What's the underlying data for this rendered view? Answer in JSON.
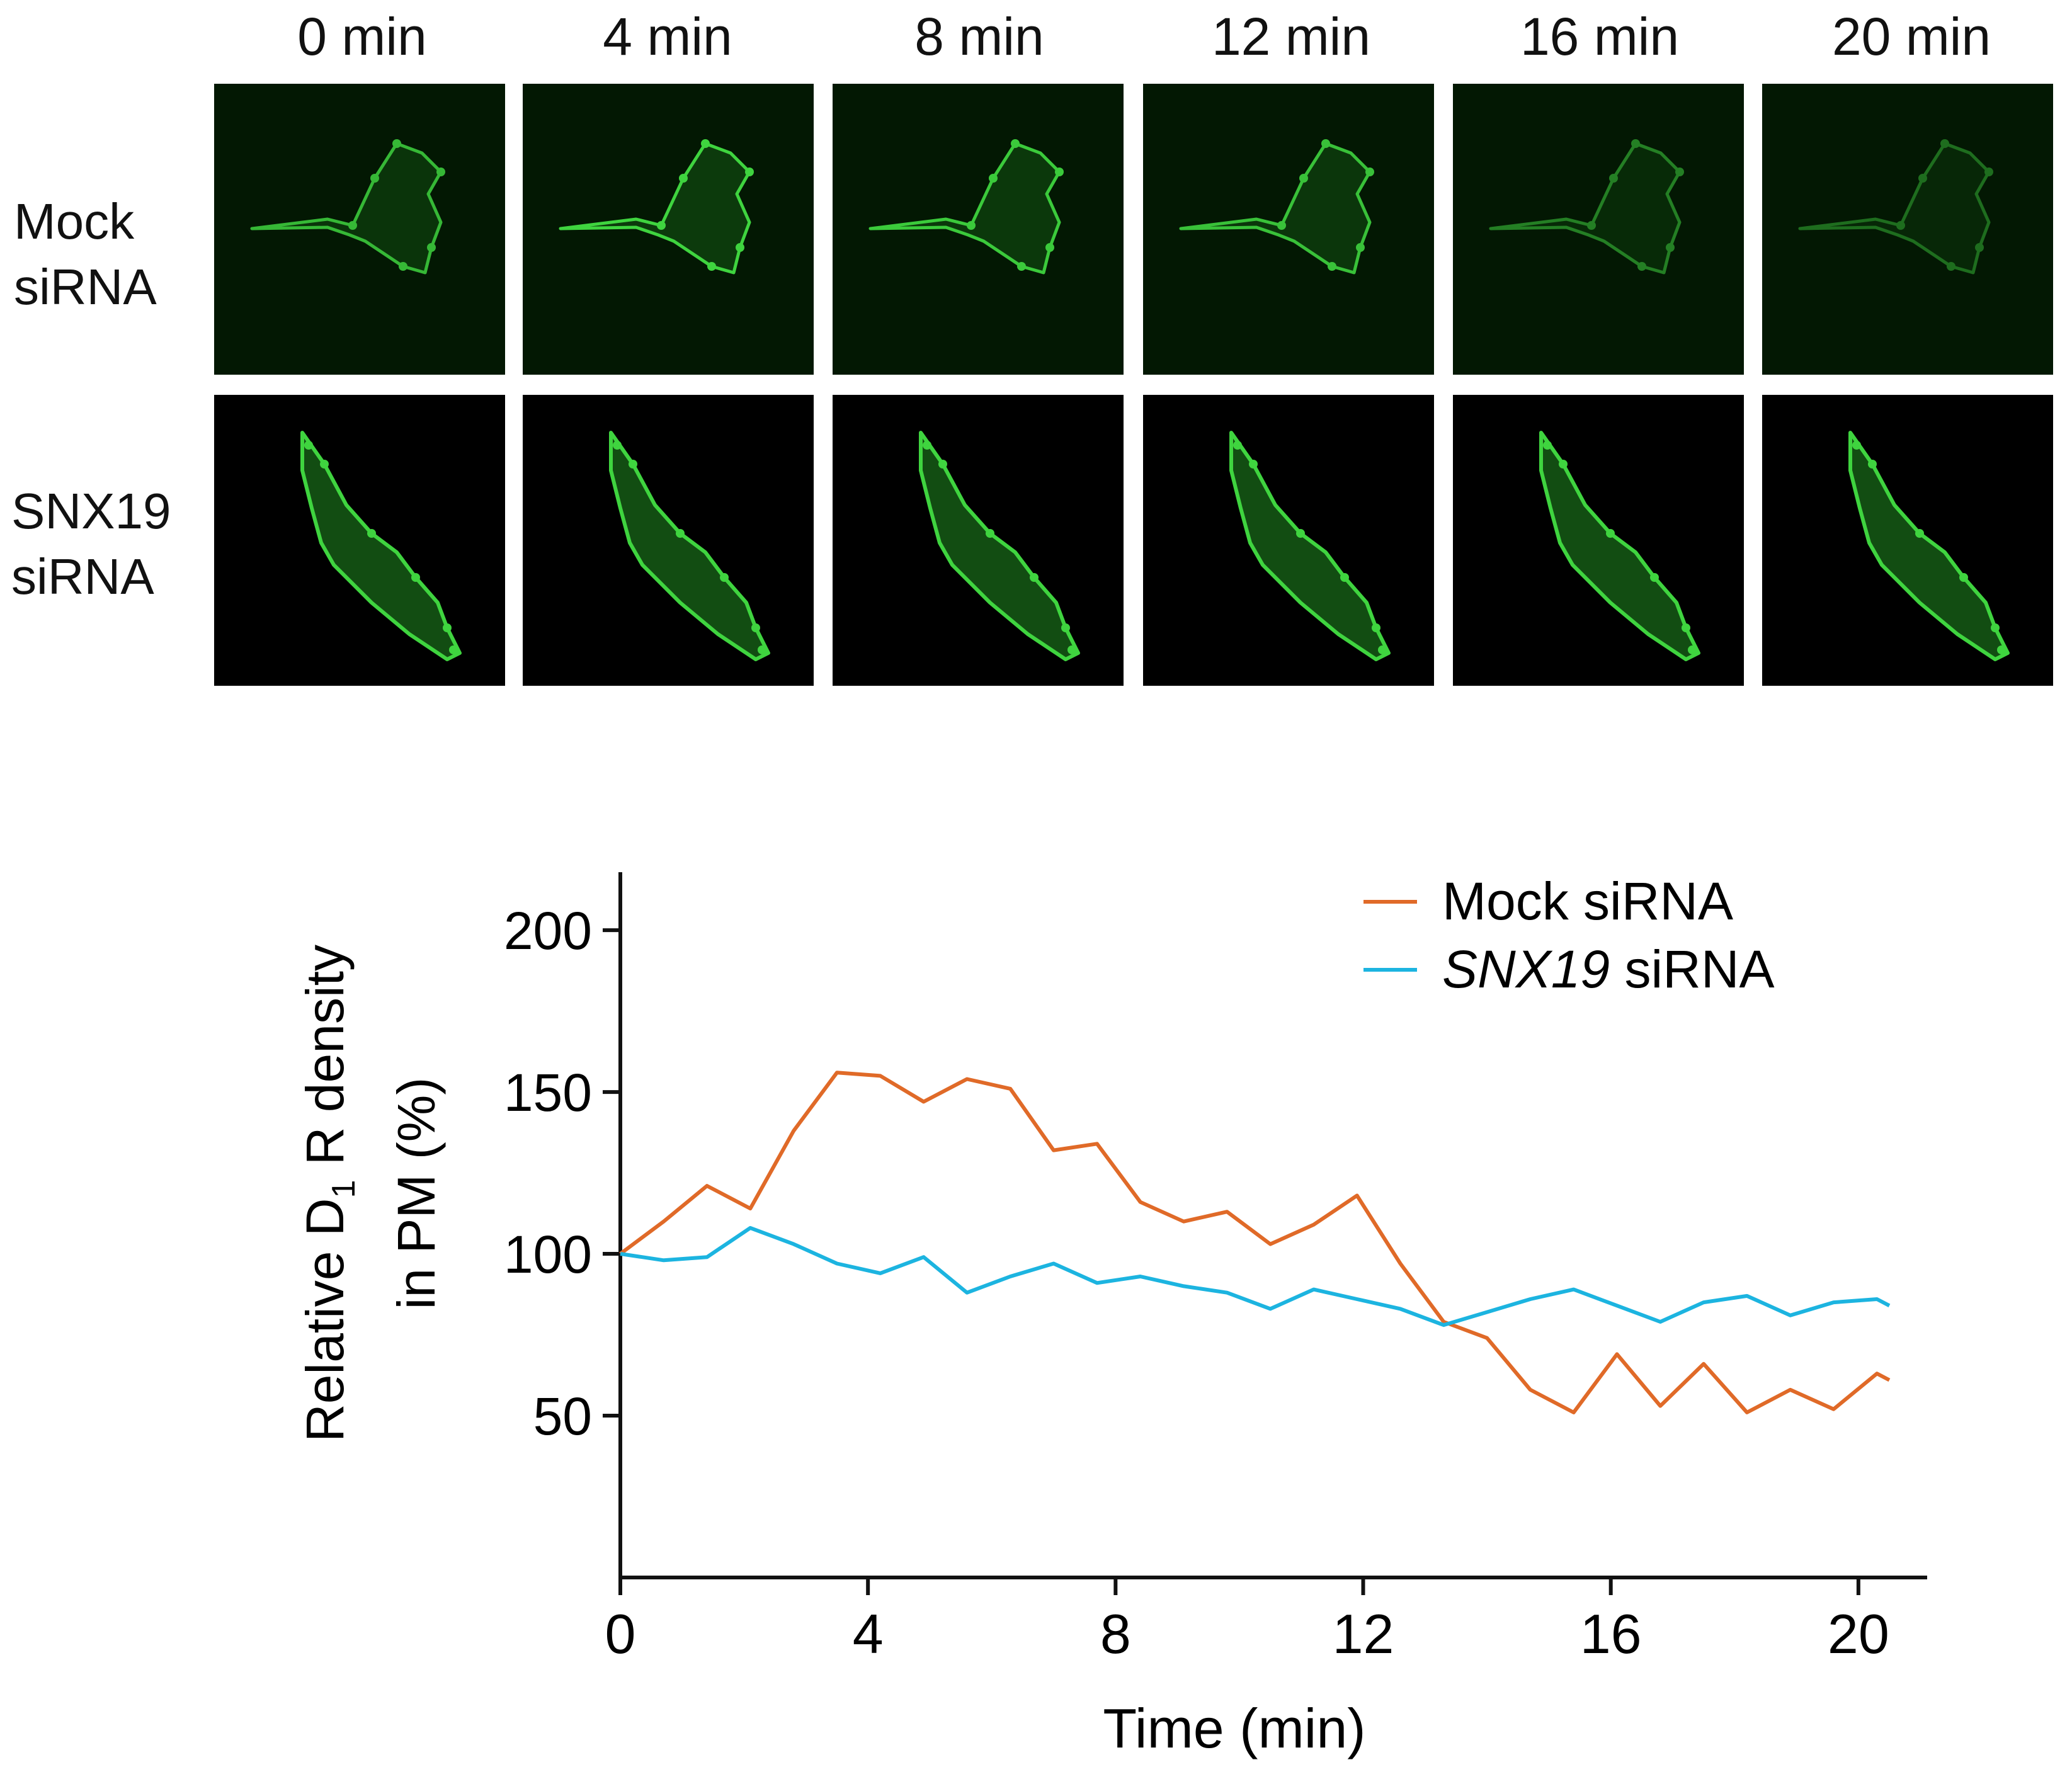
{
  "microscopy": {
    "time_labels": [
      "0 min",
      "4 min",
      "8 min",
      "12 min",
      "16 min",
      "20 min"
    ],
    "rows": [
      {
        "label_line1": "Mock",
        "label_line2": "siRNA",
        "intensity": [
          0.85,
          1.0,
          0.95,
          0.9,
          0.55,
          0.45
        ]
      },
      {
        "label_line1": "SNX19",
        "label_line2": "siRNA",
        "intensity": [
          1.0,
          1.0,
          1.0,
          1.0,
          1.0,
          1.0
        ]
      }
    ],
    "signal_color": "#3fd43f"
  },
  "chart_data": {
    "type": "line",
    "xlabel": "Time (min)",
    "ylabel_line1_pre": "Relative D",
    "ylabel_line1_sub": "1",
    "ylabel_line1_post": " R density",
    "ylabel_line2": "in PM (%)",
    "xlim": [
      0,
      20.5
    ],
    "ylim": [
      0,
      215
    ],
    "xticks": [
      0,
      4,
      8,
      12,
      16,
      20
    ],
    "yticks": [
      50,
      100,
      150,
      200
    ],
    "legend_position": "top-right",
    "series": [
      {
        "name_prefix": "",
        "name_italic": "Mock",
        "name_suffix": " siRNA",
        "italic": false,
        "color": "#e06a28",
        "x": [
          0,
          0.7,
          1.4,
          2.1,
          2.8,
          3.5,
          4.2,
          4.9,
          5.6,
          6.3,
          7.0,
          7.7,
          8.4,
          9.1,
          9.8,
          10.5,
          11.2,
          11.9,
          12.6,
          13.3,
          14.0,
          14.7,
          15.4,
          16.1,
          16.8,
          17.5,
          18.2,
          18.9,
          19.6,
          20.3,
          21.0
        ],
        "y": [
          100,
          110,
          121,
          114,
          138,
          156,
          155,
          147,
          154,
          151,
          132,
          134,
          116,
          110,
          113,
          103,
          109,
          118,
          97,
          79,
          74,
          58,
          51,
          69,
          53,
          66,
          51,
          58,
          52,
          63,
          61
        ]
      },
      {
        "name_prefix": "",
        "name_italic": "SNX19",
        "name_suffix": " siRNA",
        "italic": true,
        "color": "#1cb4e0",
        "x": [
          0,
          0.7,
          1.4,
          2.1,
          2.8,
          3.5,
          4.2,
          4.9,
          5.6,
          6.3,
          7.0,
          7.7,
          8.4,
          9.1,
          9.8,
          10.5,
          11.2,
          11.9,
          12.6,
          13.3,
          14.0,
          14.7,
          15.4,
          16.1,
          16.8,
          17.5,
          18.2,
          18.9,
          19.6,
          20.3,
          21.0
        ],
        "y": [
          100,
          98,
          99,
          108,
          103,
          97,
          94,
          99,
          88,
          93,
          97,
          91,
          93,
          90,
          88,
          83,
          89,
          86,
          83,
          78,
          82,
          86,
          89,
          84,
          79,
          85,
          87,
          81,
          85,
          86,
          84
        ]
      }
    ]
  }
}
